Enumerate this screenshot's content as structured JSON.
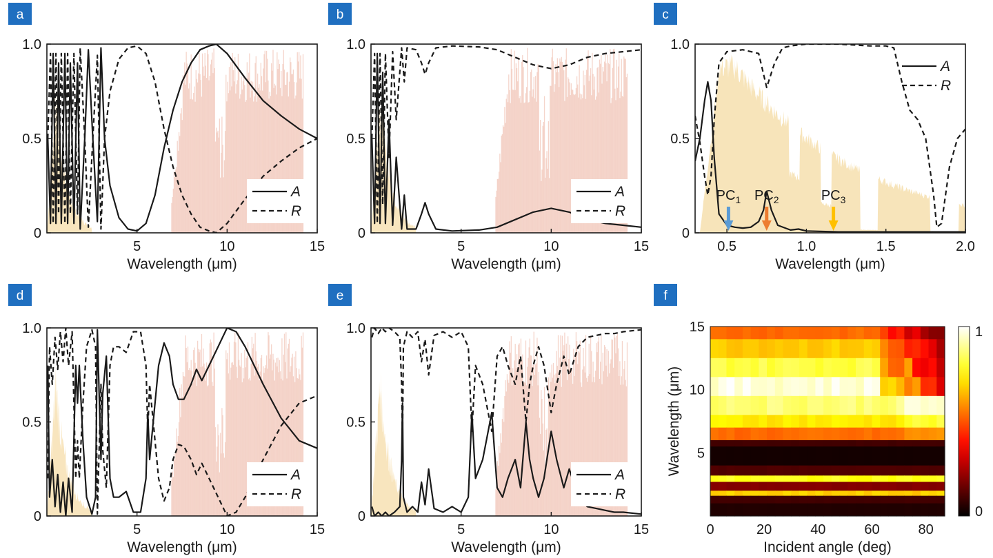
{
  "panel_labels": [
    "a",
    "b",
    "c",
    "d",
    "e",
    "f"
  ],
  "colors": {
    "panel_tag": "#1f6fc0",
    "solar_band": "#f6dfae",
    "atm_window": "#ecb3a0",
    "pc1_arrow": "#5b9bd5",
    "pc2_arrow": "#ed7d31",
    "pc3_arrow": "#ffc000"
  },
  "legend": {
    "absorptance": "A",
    "reflectance": "R"
  },
  "chart_data": [
    {
      "panel": "a",
      "type": "line",
      "xlabel": "Wavelength (μm)",
      "xlim": [
        0,
        15
      ],
      "ylim": [
        0,
        1
      ],
      "xticks": [
        5,
        10,
        15
      ],
      "yticks": [
        0,
        0.5,
        1.0
      ],
      "ytick_labels": [
        "0",
        "0.5",
        "1.0"
      ],
      "series": [
        {
          "name": "A",
          "style": "solid",
          "x": [
            0.05,
            0.2,
            0.35,
            0.5,
            0.65,
            0.8,
            1.0,
            1.15,
            1.3,
            1.5,
            1.7,
            1.85,
            2.1,
            2.3,
            2.55,
            2.8,
            3.0,
            3.2,
            3.5,
            4.0,
            4.5,
            5.0,
            5.5,
            6.0,
            6.5,
            7.0,
            7.5,
            8.0,
            8.5,
            9.0,
            9.4,
            10.0,
            11.0,
            12.0,
            13.0,
            14.0,
            15.0
          ],
          "values": [
            0.5,
            0.05,
            0.95,
            0.05,
            0.9,
            0.05,
            0.95,
            0.05,
            0.9,
            0.05,
            0.9,
            0.02,
            0.5,
            0.97,
            0.5,
            0.06,
            0.98,
            0.5,
            0.25,
            0.08,
            0.02,
            0.01,
            0.05,
            0.2,
            0.45,
            0.65,
            0.8,
            0.9,
            0.97,
            0.99,
            1.0,
            0.95,
            0.82,
            0.7,
            0.62,
            0.55,
            0.5
          ]
        },
        {
          "name": "R",
          "style": "dashed",
          "x": [
            0.05,
            0.2,
            0.35,
            0.5,
            0.65,
            0.8,
            1.0,
            1.15,
            1.3,
            1.5,
            1.7,
            1.85,
            2.1,
            2.3,
            2.55,
            2.8,
            3.0,
            3.2,
            3.5,
            4.0,
            4.5,
            5.0,
            5.5,
            6.0,
            6.5,
            7.0,
            7.5,
            8.0,
            8.5,
            9.0,
            9.4,
            10.0,
            11.0,
            12.0,
            13.0,
            14.0,
            15.0
          ],
          "values": [
            0.5,
            0.95,
            0.05,
            0.95,
            0.1,
            0.95,
            0.05,
            0.95,
            0.1,
            0.95,
            0.1,
            0.98,
            0.5,
            0.03,
            0.5,
            0.94,
            0.02,
            0.5,
            0.75,
            0.92,
            0.98,
            0.99,
            0.95,
            0.8,
            0.55,
            0.35,
            0.2,
            0.1,
            0.03,
            0.01,
            0.0,
            0.05,
            0.18,
            0.3,
            0.38,
            0.45,
            0.5
          ]
        }
      ]
    },
    {
      "panel": "b",
      "type": "line",
      "xlabel": "Wavelength (μm)",
      "xlim": [
        0,
        15
      ],
      "ylim": [
        0,
        1
      ],
      "xticks": [
        5,
        10,
        15
      ],
      "yticks": [
        0,
        0.5,
        1.0
      ],
      "ytick_labels": [
        "0",
        "0.5",
        "1.0"
      ],
      "series": [
        {
          "name": "A",
          "style": "solid",
          "x": [
            0.05,
            0.2,
            0.35,
            0.5,
            0.65,
            0.8,
            1.0,
            1.2,
            1.4,
            1.7,
            1.85,
            2.0,
            2.5,
            2.8,
            3.0,
            3.2,
            3.6,
            4.5,
            6.0,
            7.0,
            8.0,
            9.0,
            10.0,
            11.0,
            12.0,
            13.0,
            14.0,
            15.0
          ],
          "values": [
            0.5,
            0.05,
            0.95,
            0.05,
            0.85,
            0.05,
            0.6,
            0.04,
            0.4,
            0.02,
            0.2,
            0.02,
            0.02,
            0.1,
            0.16,
            0.1,
            0.02,
            0.01,
            0.015,
            0.03,
            0.07,
            0.11,
            0.13,
            0.11,
            0.07,
            0.05,
            0.04,
            0.03
          ]
        },
        {
          "name": "R",
          "style": "dashed",
          "x": [
            0.05,
            0.2,
            0.35,
            0.5,
            0.65,
            0.8,
            1.0,
            1.2,
            1.4,
            1.7,
            1.85,
            2.0,
            2.5,
            2.8,
            3.0,
            3.2,
            3.6,
            4.5,
            6.0,
            7.0,
            8.0,
            9.0,
            10.0,
            11.0,
            12.0,
            13.0,
            14.0,
            15.0
          ],
          "values": [
            0.5,
            0.95,
            0.05,
            0.95,
            0.15,
            0.95,
            0.4,
            0.96,
            0.6,
            0.98,
            0.8,
            0.98,
            0.97,
            0.9,
            0.84,
            0.9,
            0.98,
            0.99,
            0.985,
            0.97,
            0.93,
            0.89,
            0.87,
            0.89,
            0.93,
            0.95,
            0.96,
            0.97
          ]
        }
      ]
    },
    {
      "panel": "c",
      "type": "line",
      "xlabel": "Wavelength (μm)",
      "xlim": [
        0.3,
        2.0
      ],
      "ylim": [
        0,
        1
      ],
      "xticks": [
        0.5,
        1.0,
        1.5,
        2.0
      ],
      "xtick_labels": [
        "0.5",
        "1.0",
        "1.5",
        "2.0"
      ],
      "yticks": [
        0,
        0.5,
        1.0
      ],
      "ytick_labels": [
        "0",
        "0.5",
        "1.0"
      ],
      "annotations": [
        {
          "text": "PC",
          "sub": "1",
          "x": 0.51
        },
        {
          "text": "PC",
          "sub": "2",
          "x": 0.75
        },
        {
          "text": "PC",
          "sub": "3",
          "x": 1.17
        }
      ],
      "series": [
        {
          "name": "A",
          "style": "solid",
          "x": [
            0.3,
            0.33,
            0.36,
            0.38,
            0.4,
            0.42,
            0.45,
            0.5,
            0.55,
            0.6,
            0.65,
            0.7,
            0.73,
            0.75,
            0.78,
            0.82,
            0.9,
            0.95,
            1.0,
            1.2,
            1.5,
            1.8,
            2.0
          ],
          "values": [
            0.38,
            0.5,
            0.7,
            0.8,
            0.7,
            0.4,
            0.1,
            0.04,
            0.03,
            0.025,
            0.03,
            0.06,
            0.12,
            0.22,
            0.12,
            0.04,
            0.015,
            0.02,
            0.01,
            0.005,
            0.005,
            0.005,
            0.005
          ]
        },
        {
          "name": "R",
          "style": "dashed",
          "x": [
            0.3,
            0.33,
            0.36,
            0.38,
            0.4,
            0.42,
            0.45,
            0.5,
            0.6,
            0.7,
            0.75,
            0.8,
            0.85,
            0.9,
            1.0,
            1.2,
            1.4,
            1.5,
            1.55,
            1.6,
            1.65,
            1.7,
            1.75,
            1.8,
            1.82,
            1.85,
            1.9,
            1.95,
            2.0
          ],
          "values": [
            0.62,
            0.48,
            0.3,
            0.2,
            0.3,
            0.6,
            0.9,
            0.96,
            0.97,
            0.95,
            0.77,
            0.9,
            0.98,
            0.99,
            1.0,
            1.0,
            0.99,
            0.99,
            0.98,
            0.8,
            0.65,
            0.6,
            0.5,
            0.2,
            0.03,
            0.05,
            0.35,
            0.5,
            0.55
          ]
        }
      ]
    },
    {
      "panel": "d",
      "type": "line",
      "xlabel": "Wavelength (μm)",
      "xlim": [
        0,
        15
      ],
      "ylim": [
        0,
        1
      ],
      "xticks": [
        5,
        10,
        15
      ],
      "yticks": [
        0,
        0.5,
        1.0
      ],
      "ytick_labels": [
        "0",
        "0.5",
        "1.0"
      ],
      "series": [
        {
          "name": "A",
          "style": "solid",
          "x": [
            0.05,
            0.15,
            0.3,
            0.45,
            0.6,
            0.75,
            0.9,
            1.05,
            1.2,
            1.4,
            1.6,
            1.7,
            1.8,
            2.0,
            2.2,
            2.5,
            2.7,
            2.8,
            3.0,
            3.1,
            3.3,
            3.5,
            3.7,
            4.0,
            4.4,
            4.8,
            5.2,
            5.5,
            5.6,
            5.7,
            5.9,
            6.2,
            6.5,
            6.8,
            7.0,
            7.3,
            7.6,
            8.0,
            8.3,
            8.6,
            9.0,
            9.5,
            10.0,
            10.5,
            11.0,
            12.0,
            13.0,
            14.0,
            15.0
          ],
          "values": [
            0.8,
            0.1,
            0.3,
            0.05,
            0.22,
            0.02,
            0.18,
            0.0,
            0.2,
            0.02,
            0.8,
            0.6,
            0.8,
            0.4,
            0.1,
            0.01,
            0.1,
            0.99,
            0.3,
            0.65,
            0.85,
            0.2,
            0.1,
            0.1,
            0.13,
            0.02,
            0.02,
            0.2,
            0.55,
            0.3,
            0.5,
            0.8,
            0.92,
            0.85,
            0.7,
            0.62,
            0.62,
            0.7,
            0.78,
            0.72,
            0.8,
            0.9,
            1.0,
            0.98,
            0.9,
            0.7,
            0.52,
            0.4,
            0.36
          ]
        },
        {
          "name": "R",
          "style": "dashed",
          "x": [
            0.05,
            0.15,
            0.3,
            0.45,
            0.6,
            0.75,
            0.9,
            1.05,
            1.2,
            1.4,
            1.6,
            1.7,
            1.8,
            2.0,
            2.2,
            2.5,
            2.7,
            2.8,
            3.0,
            3.1,
            3.3,
            3.5,
            3.7,
            4.0,
            4.4,
            4.8,
            5.2,
            5.5,
            5.6,
            5.7,
            5.9,
            6.2,
            6.5,
            6.8,
            7.0,
            7.3,
            7.6,
            8.0,
            8.3,
            8.6,
            9.0,
            9.5,
            10.0,
            10.5,
            11.0,
            12.0,
            13.0,
            14.0,
            15.0
          ],
          "values": [
            0.2,
            0.9,
            0.7,
            0.95,
            0.78,
            0.98,
            0.82,
            1.0,
            0.8,
            0.98,
            0.2,
            0.4,
            0.2,
            0.6,
            0.9,
            0.99,
            0.9,
            0.01,
            0.7,
            0.35,
            0.15,
            0.8,
            0.9,
            0.9,
            0.87,
            0.98,
            0.98,
            0.8,
            0.45,
            0.7,
            0.5,
            0.2,
            0.08,
            0.15,
            0.3,
            0.38,
            0.37,
            0.3,
            0.22,
            0.28,
            0.2,
            0.1,
            0.0,
            0.02,
            0.1,
            0.3,
            0.48,
            0.6,
            0.64
          ]
        }
      ]
    },
    {
      "panel": "e",
      "type": "line",
      "xlabel": "Wavelength (μm)",
      "xlim": [
        0,
        15
      ],
      "ylim": [
        0,
        1
      ],
      "xticks": [
        5,
        10,
        15
      ],
      "yticks": [
        0,
        0.5,
        1.0
      ],
      "ytick_labels": [
        "0",
        "0.5",
        "1.0"
      ],
      "series": [
        {
          "name": "A",
          "style": "solid",
          "x": [
            0.05,
            0.2,
            0.4,
            0.6,
            0.8,
            1.0,
            1.3,
            1.6,
            1.7,
            1.75,
            1.8,
            2.0,
            2.3,
            2.6,
            2.8,
            3.0,
            3.2,
            3.5,
            4.0,
            4.5,
            5.0,
            5.4,
            5.6,
            5.8,
            6.2,
            6.5,
            6.7,
            7.0,
            7.3,
            7.6,
            8.0,
            8.3,
            8.6,
            8.8,
            9.0,
            9.3,
            9.6,
            10.0,
            10.3,
            10.7,
            11.0,
            11.5,
            12.0,
            12.5,
            13.0,
            13.5,
            14.0,
            15.0
          ],
          "values": [
            0.05,
            0.0,
            0.02,
            0.0,
            0.02,
            0.0,
            0.02,
            0.05,
            0.3,
            0.6,
            0.1,
            0.02,
            0.05,
            0.02,
            0.18,
            0.06,
            0.25,
            0.04,
            0.02,
            0.05,
            0.02,
            0.1,
            0.55,
            0.2,
            0.3,
            0.45,
            0.55,
            0.15,
            0.1,
            0.2,
            0.3,
            0.15,
            0.5,
            0.3,
            0.2,
            0.1,
            0.2,
            0.45,
            0.3,
            0.15,
            0.25,
            0.1,
            0.05,
            0.04,
            0.03,
            0.02,
            0.02,
            0.01
          ]
        },
        {
          "name": "R",
          "style": "dashed",
          "x": [
            0.05,
            0.2,
            0.4,
            0.6,
            0.8,
            1.0,
            1.3,
            1.6,
            1.7,
            1.75,
            1.8,
            2.0,
            2.3,
            2.6,
            2.8,
            3.0,
            3.2,
            3.5,
            4.0,
            4.5,
            5.0,
            5.4,
            5.6,
            5.8,
            6.2,
            6.5,
            6.7,
            7.0,
            7.3,
            7.6,
            8.0,
            8.3,
            8.6,
            8.8,
            9.0,
            9.3,
            9.6,
            10.0,
            10.3,
            10.7,
            11.0,
            11.5,
            12.0,
            12.5,
            13.0,
            13.5,
            14.0,
            15.0
          ],
          "values": [
            0.95,
            1.0,
            0.97,
            1.0,
            0.98,
            1.0,
            0.98,
            0.95,
            0.7,
            0.4,
            0.9,
            0.98,
            0.95,
            0.98,
            0.82,
            0.94,
            0.75,
            0.96,
            0.98,
            0.95,
            0.98,
            0.9,
            0.45,
            0.8,
            0.7,
            0.55,
            0.45,
            0.85,
            0.9,
            0.8,
            0.7,
            0.85,
            0.5,
            0.7,
            0.8,
            0.9,
            0.8,
            0.55,
            0.7,
            0.85,
            0.75,
            0.9,
            0.95,
            0.96,
            0.97,
            0.97,
            0.98,
            0.99
          ]
        }
      ]
    },
    {
      "panel": "f",
      "type": "heatmap",
      "xlabel": "Incident angle (deg)",
      "ylabel": "Wavelength (μm)",
      "xlim": [
        0,
        87
      ],
      "ylim": [
        0,
        15
      ],
      "xticks": [
        0,
        20,
        40,
        60,
        80
      ],
      "yticks": [
        5,
        10,
        15
      ],
      "colorbar": {
        "min": 0,
        "max": 1,
        "labels": [
          "0",
          "1"
        ],
        "colormap": "hot"
      },
      "rows_by_wavelength": [
        {
          "y": [
            14.0,
            15.0
          ],
          "value": 0.55
        },
        {
          "y": [
            12.5,
            14.0
          ],
          "value": 0.7
        },
        {
          "y": [
            11.0,
            12.5
          ],
          "value": 0.85
        },
        {
          "y": [
            9.5,
            11.0
          ],
          "value": 1.0
        },
        {
          "y": [
            8.0,
            9.5
          ],
          "value": 0.9
        },
        {
          "y": [
            7.0,
            8.0
          ],
          "value": 0.75
        },
        {
          "y": [
            6.0,
            7.0
          ],
          "value": 0.55
        },
        {
          "y": [
            5.5,
            6.0
          ],
          "value": 0.1
        },
        {
          "y": [
            4.0,
            5.5
          ],
          "value": 0.03
        },
        {
          "y": [
            3.2,
            4.0
          ],
          "value": 0.12
        },
        {
          "y": [
            2.7,
            3.2
          ],
          "value": 0.8
        },
        {
          "y": [
            2.0,
            2.7
          ],
          "value": 0.2
        },
        {
          "y": [
            1.6,
            2.0
          ],
          "value": 0.7
        },
        {
          "y": [
            1.0,
            1.6
          ],
          "value": 0.1
        },
        {
          "y": [
            0.0,
            1.0
          ],
          "value": 0.05
        }
      ]
    }
  ]
}
